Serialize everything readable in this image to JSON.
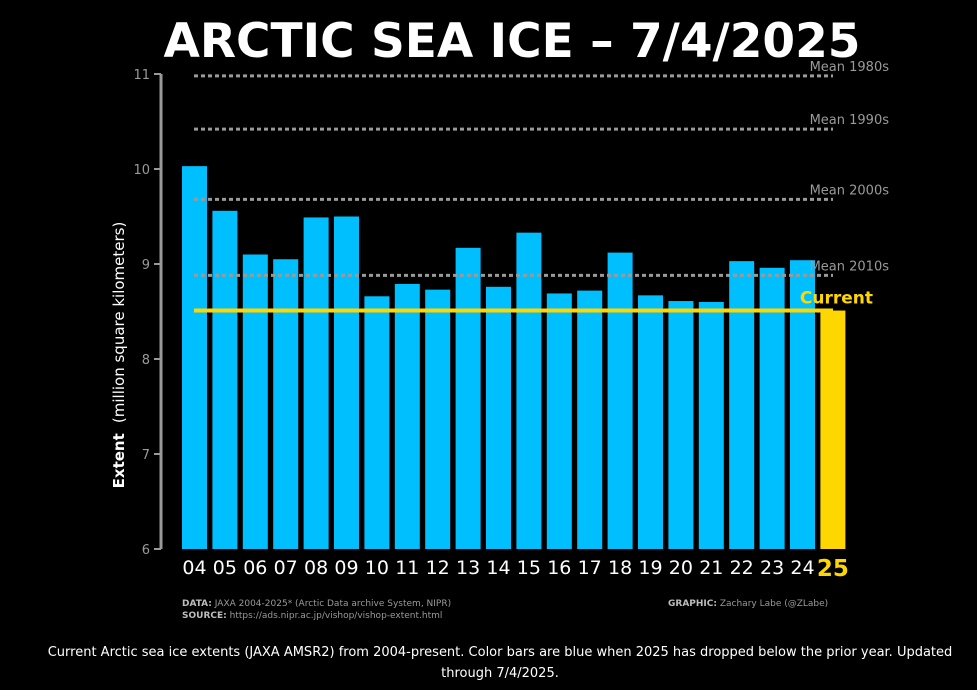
{
  "title": "ARCTIC SEA ICE – 7/4/2025",
  "chart_data": {
    "type": "bar",
    "categories": [
      "04",
      "05",
      "06",
      "07",
      "08",
      "09",
      "10",
      "11",
      "12",
      "13",
      "14",
      "15",
      "16",
      "17",
      "18",
      "19",
      "20",
      "21",
      "22",
      "23",
      "24",
      "25"
    ],
    "values": [
      10.03,
      9.56,
      9.1,
      9.05,
      9.49,
      9.5,
      8.66,
      8.79,
      8.73,
      9.17,
      8.76,
      9.33,
      8.69,
      8.72,
      9.12,
      8.67,
      8.61,
      8.6,
      9.03,
      8.96,
      9.04,
      8.51
    ],
    "ylim": [
      6,
      11
    ],
    "yticks": [
      "6",
      "7",
      "8",
      "9",
      "10",
      "11"
    ],
    "ylabel_bold": "Extent",
    "ylabel_rest": "(million square kilometers)",
    "reference_lines": [
      {
        "label": "Mean 1980s",
        "value": 10.98
      },
      {
        "label": "Mean 1990s",
        "value": 10.42
      },
      {
        "label": "Mean 2000s",
        "value": 9.68
      },
      {
        "label": "Mean 2010s",
        "value": 8.88
      }
    ],
    "current_line": {
      "label": "Current",
      "value": 8.51
    },
    "colors": {
      "bar": "#00BFFF",
      "current": "#FFD700",
      "reference": "#9a9a9a",
      "axis": "#9a9a9a"
    },
    "grid": false
  },
  "credits": {
    "data_label": "DATA:",
    "data_text": "JAXA 2004-2025* (Arctic Data archive System, NIPR)",
    "source_label": "SOURCE:",
    "source_text": "https://ads.nipr.ac.jp/vishop/vishop-extent.html",
    "graphic_label": "GRAPHIC:",
    "graphic_text": "Zachary Labe (@ZLabe)"
  },
  "caption": "Current Arctic sea ice extents (JAXA AMSR2) from 2004-present. Color bars are blue when 2025 has dropped below the prior year. Updated through 7/4/2025."
}
